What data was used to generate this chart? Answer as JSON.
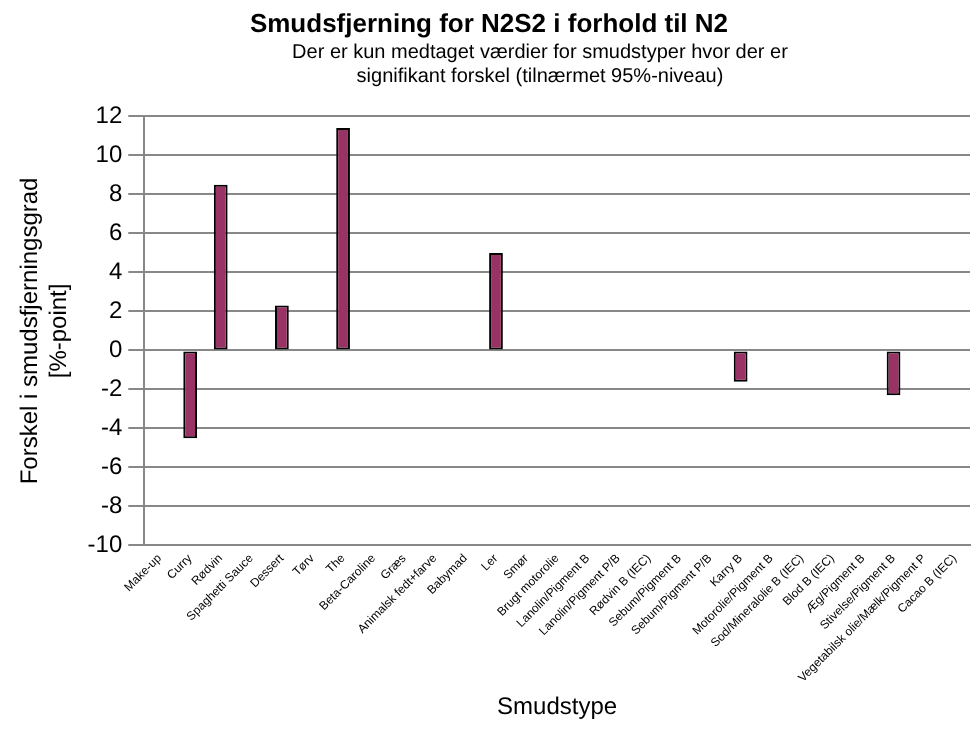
{
  "chart_data": {
    "type": "bar",
    "title": "Smudsfjerning for N2S2 i forhold til N2",
    "subtitle": "Der er kun medtaget værdier for smudstyper hvor der er signifikant forskel (tilnærmet 95%-niveau)",
    "xlabel": "Smudstype",
    "ylabel": "Forskel i smudsfjerningsgrad [%-point]",
    "categories": [
      "Make-up",
      "Curry",
      "Rødvin",
      "Spaghetti Sauce",
      "Dessert",
      "Tørv",
      "The",
      "Beta-Caroline",
      "Græs",
      "Animalsk fedt+farve",
      "Babymad",
      "Ler",
      "Smør",
      "Brugt motorolie",
      "Lanolin/Pigment B",
      "Lanolin/Pigment P/B",
      "Rødvin B (IEC)",
      "Sebum/Pigment B",
      "Sebum/Pigment P/B",
      "Karry B",
      "Motorolie/Pigment B",
      "Sod/Mineralolie B (IEC)",
      "Blod B (IEC)",
      "Æg/Pigment B",
      "Stivelse/Pigment B",
      "Vegetabilsk olie/Mælk/Pigment P",
      "Cacao B (IEC)"
    ],
    "values": [
      null,
      -4.5,
      8.5,
      null,
      2.3,
      null,
      11.4,
      null,
      null,
      null,
      null,
      5.0,
      null,
      null,
      null,
      null,
      null,
      null,
      null,
      -1.6,
      null,
      null,
      null,
      null,
      -2.3,
      null,
      null
    ],
    "color": "#993366",
    "ylim": [
      -10,
      12
    ],
    "yticks": [
      -10,
      -8,
      -6,
      -4,
      -2,
      0,
      2,
      4,
      6,
      8,
      10,
      12
    ],
    "grid": "y",
    "legend": false
  }
}
